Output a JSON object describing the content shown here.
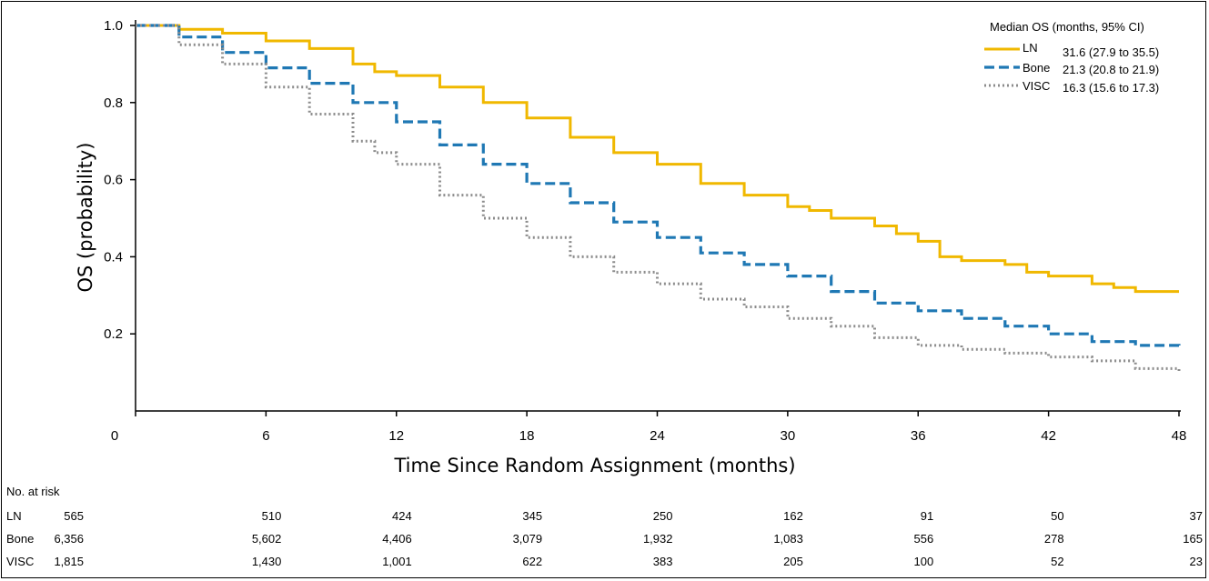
{
  "chart_data": {
    "type": "line",
    "xlabel": "Time Since Random Assignment (months)",
    "ylabel": "OS (probability)",
    "xlim": [
      0,
      48
    ],
    "ylim": [
      0,
      1.0
    ],
    "x_ticks": [
      "0",
      "6",
      "12",
      "18",
      "24",
      "30",
      "36",
      "42",
      "48"
    ],
    "y_ticks": [
      "0.2",
      "0.4",
      "0.6",
      "0.8",
      "1.0"
    ],
    "legend": {
      "title": "Median OS (months, 95% CI)",
      "placement": "top-right",
      "entries": [
        {
          "name": "LN",
          "median": "31.6 (27.9 to 35.5)"
        },
        {
          "name": "Bone",
          "median": "21.3 (20.8 to 21.9)"
        },
        {
          "name": "VISC",
          "median": "16.3 (15.6 to 17.3)"
        }
      ]
    },
    "grid": false,
    "series": [
      {
        "name": "LN",
        "color": "#f0b800",
        "style": "solid",
        "x": [
          0,
          2,
          4,
          6,
          8,
          10,
          11,
          12,
          14,
          16,
          18,
          20,
          22,
          24,
          26,
          28,
          30,
          31,
          32,
          34,
          35,
          36,
          37,
          38,
          40,
          41,
          42,
          44,
          45,
          46,
          48
        ],
        "y": [
          1.0,
          0.99,
          0.98,
          0.96,
          0.94,
          0.9,
          0.88,
          0.87,
          0.84,
          0.8,
          0.76,
          0.71,
          0.67,
          0.64,
          0.59,
          0.56,
          0.53,
          0.52,
          0.5,
          0.48,
          0.46,
          0.44,
          0.4,
          0.39,
          0.38,
          0.36,
          0.35,
          0.33,
          0.32,
          0.31,
          0.31
        ]
      },
      {
        "name": "Bone",
        "color": "#1f78b4",
        "style": "dashed",
        "x": [
          0,
          2,
          4,
          6,
          8,
          10,
          12,
          14,
          16,
          18,
          20,
          22,
          24,
          26,
          28,
          30,
          32,
          34,
          36,
          38,
          40,
          42,
          44,
          46,
          48
        ],
        "y": [
          1.0,
          0.97,
          0.93,
          0.89,
          0.85,
          0.8,
          0.75,
          0.69,
          0.64,
          0.59,
          0.54,
          0.49,
          0.45,
          0.41,
          0.38,
          0.35,
          0.31,
          0.28,
          0.26,
          0.24,
          0.22,
          0.2,
          0.18,
          0.17,
          0.16
        ]
      },
      {
        "name": "VISC",
        "color": "#8c8c8c",
        "style": "dotted",
        "x": [
          0,
          2,
          4,
          6,
          8,
          10,
          11,
          12,
          14,
          16,
          18,
          20,
          22,
          24,
          26,
          28,
          30,
          32,
          34,
          36,
          38,
          40,
          42,
          44,
          46,
          48
        ],
        "y": [
          1.0,
          0.95,
          0.9,
          0.84,
          0.77,
          0.7,
          0.67,
          0.64,
          0.56,
          0.5,
          0.45,
          0.4,
          0.36,
          0.33,
          0.29,
          0.27,
          0.24,
          0.22,
          0.19,
          0.17,
          0.16,
          0.15,
          0.14,
          0.13,
          0.11,
          0.1
        ]
      }
    ],
    "risk_table": {
      "title": "No. at risk",
      "rows": [
        {
          "label": "LN",
          "values": [
            "565",
            "510",
            "424",
            "345",
            "250",
            "162",
            "91",
            "50",
            "37"
          ]
        },
        {
          "label": "Bone",
          "values": [
            "6,356",
            "5,602",
            "4,406",
            "3,079",
            "1,932",
            "1,083",
            "556",
            "278",
            "165"
          ]
        },
        {
          "label": "VISC",
          "values": [
            "1,815",
            "1,430",
            "1,001",
            "622",
            "383",
            "205",
            "100",
            "52",
            "23"
          ]
        }
      ]
    }
  }
}
